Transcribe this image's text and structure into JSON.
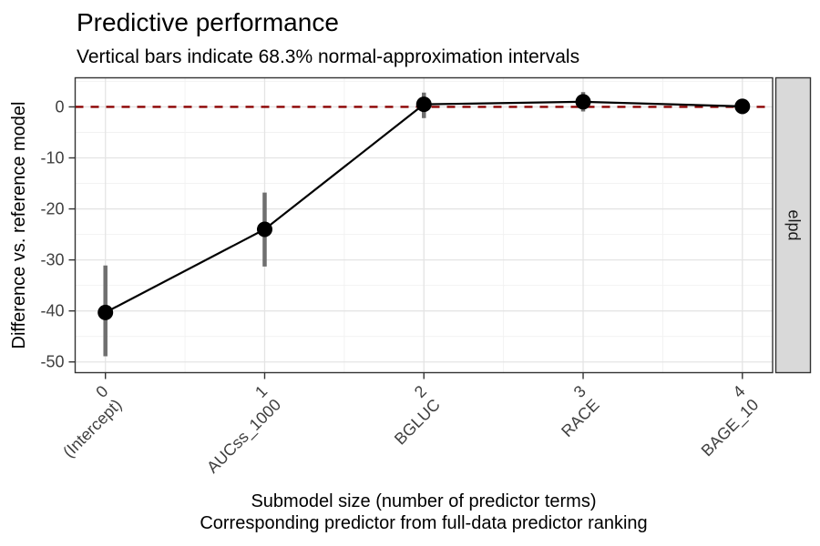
{
  "title": "Predictive performance",
  "subtitle": "Vertical bars indicate 68.3% normal-approximation intervals",
  "axes": {
    "y_label": "Difference vs. reference model",
    "x_label_line1": "Submodel size (number of predictor terms)",
    "x_label_line2": "Corresponding predictor from full-data predictor ranking"
  },
  "facet_strip_label": "elpd",
  "chart_data": {
    "type": "line",
    "x": [
      0,
      1,
      2,
      3,
      4
    ],
    "x_tick_labels": [
      [
        "0",
        "(Intercept)"
      ],
      [
        "1",
        "AUCss_1000"
      ],
      [
        "2",
        "BGLUC"
      ],
      [
        "3",
        "RACE"
      ],
      [
        "4",
        "BAGE_10"
      ]
    ],
    "y_ticks": [
      0,
      -10,
      -20,
      -30,
      -40,
      -50
    ],
    "series": [
      {
        "name": "elpd difference vs. reference model",
        "values": [
          -40.3,
          -24.0,
          0.5,
          1.0,
          0.1
        ],
        "interval_low": [
          -48.9,
          -31.3,
          -2.2,
          -0.9,
          -1.4
        ],
        "interval_high": [
          -31.1,
          -16.8,
          2.8,
          2.9,
          1.6
        ]
      }
    ],
    "reference_line_y": 0,
    "xlim": [
      -0.19,
      4.19
    ],
    "ylim": [
      -52.1,
      5.7
    ],
    "x_minor_breaks": [
      0.5,
      1.5,
      2.5,
      3.5
    ],
    "y_minor_breaks": [
      5,
      -5,
      -15,
      -25,
      -35,
      -45
    ],
    "grid": "major+minor",
    "legend": "none"
  },
  "colors": {
    "reference_line": "#8B0000",
    "interval_bar": "#6F6F6F",
    "point": "#000000",
    "trend_line": "#000000",
    "grid_major": "#E4E4E4",
    "grid_minor": "#F2F2F2",
    "panel_border": "#333333",
    "tick_mark": "#333333",
    "strip_fill": "#D9D9D9",
    "strip_border": "#333333"
  }
}
